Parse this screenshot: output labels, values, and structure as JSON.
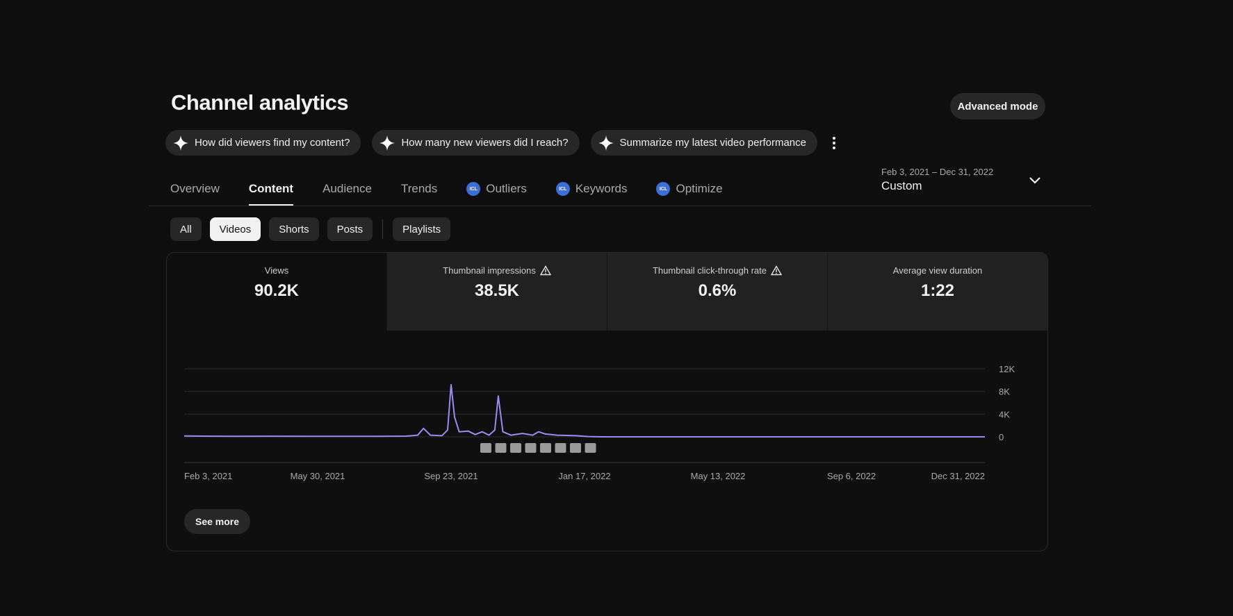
{
  "page": {
    "title": "Channel analytics",
    "advanced_mode_label": "Advanced mode"
  },
  "ai_chips": [
    {
      "label": "How did viewers find my content?",
      "icon": "sparkle-icon"
    },
    {
      "label": "How many new viewers did I reach?",
      "icon": "sparkle-icon"
    },
    {
      "label": "Summarize my latest video performance",
      "icon": "sparkle-icon"
    }
  ],
  "date_range": {
    "range": "Feb 3, 2021 – Dec 31, 2022",
    "preset": "Custom"
  },
  "tabs": [
    {
      "label": "Overview"
    },
    {
      "label": "Content"
    },
    {
      "label": "Audience"
    },
    {
      "label": "Trends"
    },
    {
      "label": "Outliers",
      "badge": "ICL"
    },
    {
      "label": "Keywords",
      "badge": "ICL"
    },
    {
      "label": "Optimize",
      "badge": "ICL"
    }
  ],
  "active_tab": "Content",
  "filters": [
    "All",
    "Videos",
    "Shorts",
    "Posts",
    "Playlists"
  ],
  "selected_filter": "Videos",
  "metrics": [
    {
      "label": "Views",
      "value": "90.2K",
      "warning": false
    },
    {
      "label": "Thumbnail impressions",
      "value": "38.5K",
      "warning": true
    },
    {
      "label": "Thumbnail click-through rate",
      "value": "0.6%",
      "warning": true
    },
    {
      "label": "Average view duration",
      "value": "1:22",
      "warning": false
    }
  ],
  "colors": {
    "line": "#9b8cf2",
    "background": "#0e0e0e",
    "chip_bg": "#272727",
    "badge": "#3b6fd6"
  },
  "chart_data": {
    "type": "line",
    "x_tick_labels": [
      "Feb 3, 2021",
      "May 30, 2021",
      "Sep 23, 2021",
      "Jan 17, 2022",
      "May 13, 2022",
      "Sep 6, 2022",
      "Dec 31, 2022"
    ],
    "y_tick_labels": [
      "12K",
      "8K",
      "4K",
      "0"
    ],
    "ylim": [
      0,
      12000
    ],
    "xlim": [
      "2021-02-03",
      "2022-12-31"
    ],
    "series": [
      {
        "points": [
          [
            "2021-02-03",
            150
          ],
          [
            "2021-02-20",
            120
          ],
          [
            "2021-03-20",
            100
          ],
          [
            "2021-04-20",
            110
          ],
          [
            "2021-05-20",
            90
          ],
          [
            "2021-06-20",
            100
          ],
          [
            "2021-07-20",
            80
          ],
          [
            "2021-08-15",
            120
          ],
          [
            "2021-08-25",
            300
          ],
          [
            "2021-08-30",
            1500
          ],
          [
            "2021-09-05",
            300
          ],
          [
            "2021-09-15",
            200
          ],
          [
            "2021-09-20",
            1200
          ],
          [
            "2021-09-23",
            9200
          ],
          [
            "2021-09-26",
            3500
          ],
          [
            "2021-09-30",
            900
          ],
          [
            "2021-10-08",
            1000
          ],
          [
            "2021-10-14",
            400
          ],
          [
            "2021-10-20",
            900
          ],
          [
            "2021-10-26",
            300
          ],
          [
            "2021-10-31",
            1200
          ],
          [
            "2021-11-03",
            7200
          ],
          [
            "2021-11-07",
            900
          ],
          [
            "2021-11-14",
            300
          ],
          [
            "2021-11-24",
            600
          ],
          [
            "2021-12-03",
            300
          ],
          [
            "2021-12-08",
            900
          ],
          [
            "2021-12-14",
            500
          ],
          [
            "2021-12-24",
            300
          ],
          [
            "2022-01-10",
            200
          ],
          [
            "2022-01-20",
            50
          ],
          [
            "2022-02-01",
            0
          ],
          [
            "2022-12-31",
            0
          ]
        ]
      }
    ],
    "annotation_markers": 8,
    "grid": true
  },
  "see_more_label": "See more"
}
